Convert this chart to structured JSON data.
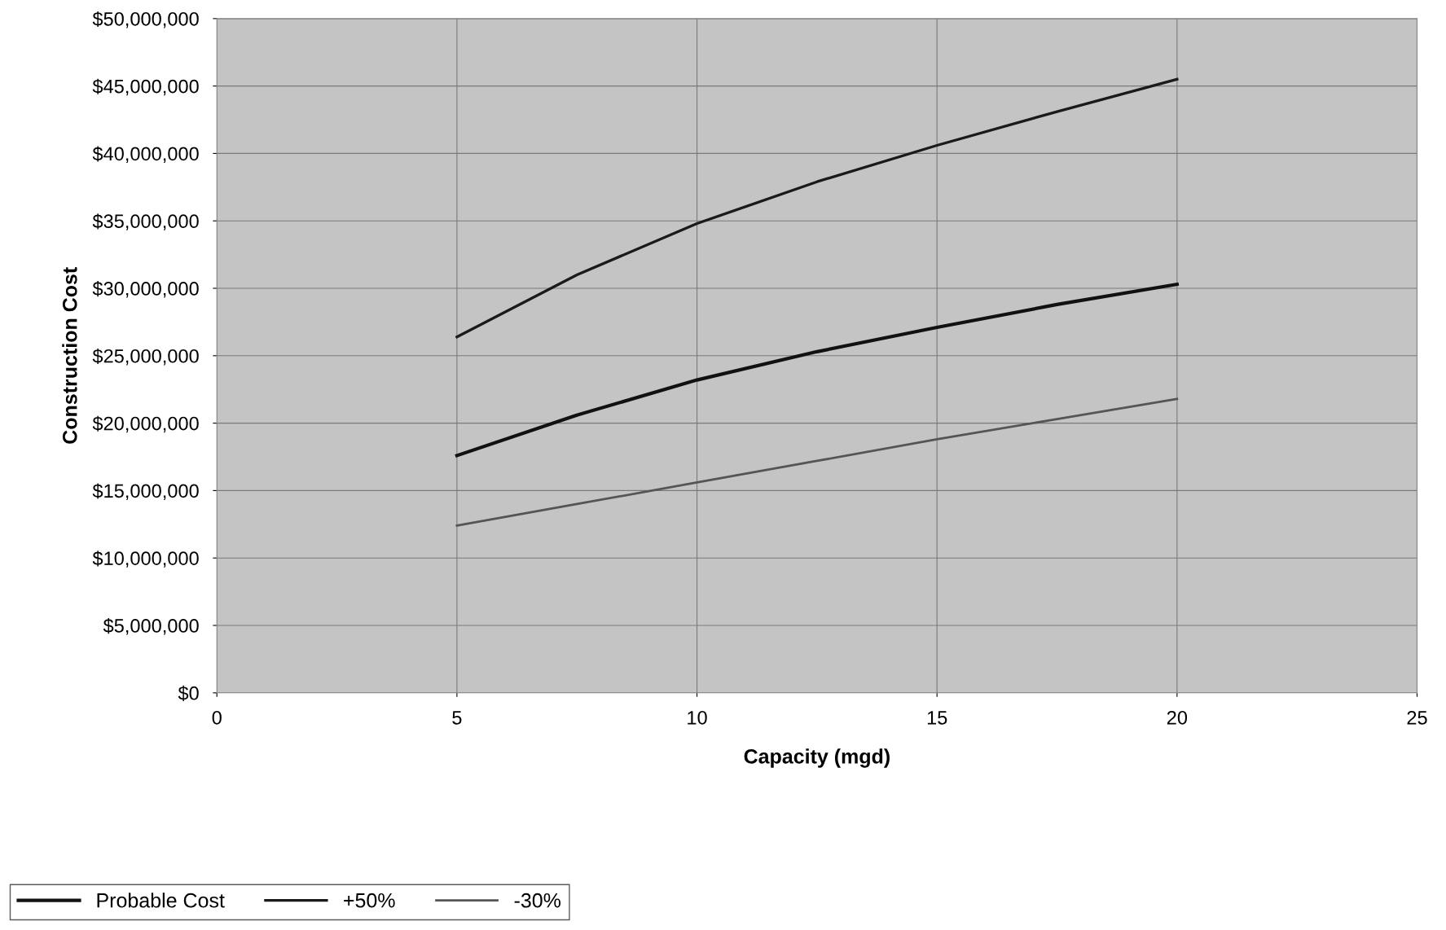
{
  "chart_data": {
    "type": "line",
    "xlabel": "Capacity (mgd)",
    "ylabel": "Construction Cost",
    "xlim": [
      0,
      25
    ],
    "xticks": [
      0,
      5,
      10,
      15,
      20,
      25
    ],
    "ylim": [
      0,
      50000000
    ],
    "yticks": [
      {
        "value": 0,
        "label": "$0"
      },
      {
        "value": 5000000,
        "label": "$5,000,000"
      },
      {
        "value": 10000000,
        "label": "$10,000,000"
      },
      {
        "value": 15000000,
        "label": "$15,000,000"
      },
      {
        "value": 20000000,
        "label": "$20,000,000"
      },
      {
        "value": 25000000,
        "label": "$25,000,000"
      },
      {
        "value": 30000000,
        "label": "$30,000,000"
      },
      {
        "value": 35000000,
        "label": "$35,000,000"
      },
      {
        "value": 40000000,
        "label": "$40,000,000"
      },
      {
        "value": 45000000,
        "label": "$45,000,000"
      },
      {
        "value": 50000000,
        "label": "$50,000,000"
      }
    ],
    "x": [
      5,
      7.5,
      10,
      12.5,
      15,
      17.5,
      20
    ],
    "series": [
      {
        "name": "Probable Cost",
        "color": "#111111",
        "values": [
          17600000,
          20600000,
          23200000,
          25300000,
          27100000,
          28800000,
          30300000
        ]
      },
      {
        "name": "+50%",
        "color": "#1a1a1a",
        "values": [
          26400000,
          31000000,
          34800000,
          37900000,
          40600000,
          43100000,
          45500000
        ]
      },
      {
        "name": "-30%",
        "color": "#555555",
        "values": [
          12400000,
          14000000,
          15600000,
          17200000,
          18800000,
          20300000,
          21800000
        ]
      }
    ],
    "grid": true,
    "legend": "bottom left",
    "marker": "none",
    "line_style": "solid"
  }
}
